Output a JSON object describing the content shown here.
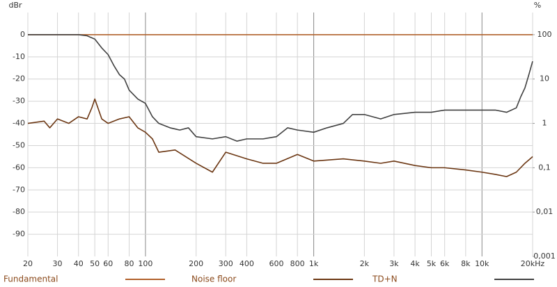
{
  "chart_data": {
    "type": "line",
    "y_unit": "dBr",
    "y2_unit": "%",
    "x_log": true,
    "y2_log": true,
    "grid": true,
    "legend": "bottom",
    "xlim": [
      20,
      20000
    ],
    "ylim": [
      -100,
      10
    ],
    "y2lim": [
      0.001,
      316.23
    ],
    "xticks": [
      20,
      30,
      40,
      50,
      60,
      80,
      100,
      200,
      300,
      400,
      600,
      800,
      {
        "value": 1000,
        "label": "1k"
      },
      {
        "value": 2000,
        "label": "2k"
      },
      {
        "value": 3000,
        "label": "3k"
      },
      {
        "value": 4000,
        "label": "4k"
      },
      {
        "value": 5000,
        "label": "5k"
      },
      {
        "value": 6000,
        "label": "6k"
      },
      {
        "value": 8000,
        "label": "8k"
      },
      {
        "value": 10000,
        "label": "10k"
      },
      {
        "value": 20000,
        "label": "20kHz"
      }
    ],
    "yticks": [
      0,
      -10,
      -20,
      -30,
      -40,
      -50,
      -60,
      -70,
      -80,
      -90
    ],
    "y2ticks": [
      100,
      10,
      1,
      {
        "value": 0.1,
        "label": "0,1"
      },
      {
        "value": 0.01,
        "label": "0,01"
      },
      {
        "value": 0.001,
        "label": "0,001"
      }
    ],
    "series": [
      {
        "name": "Fundamental",
        "color": "#b0602a",
        "x": [
          20,
          20000
        ],
        "values": [
          0,
          0
        ]
      },
      {
        "name": "Noise floor",
        "color": "#6b3612",
        "x": [
          20,
          25,
          27,
          30,
          35,
          40,
          45,
          48,
          50,
          55,
          60,
          70,
          80,
          90,
          100,
          110,
          120,
          150,
          200,
          250,
          300,
          400,
          500,
          600,
          800,
          1000,
          1500,
          2000,
          2500,
          3000,
          4000,
          5000,
          6000,
          8000,
          10000,
          12000,
          14000,
          16000,
          18000,
          20000
        ],
        "values": [
          -40,
          -39,
          -42,
          -38,
          -40,
          -37,
          -38,
          -33,
          -29,
          -38,
          -40,
          -38,
          -37,
          -42,
          -44,
          -47,
          -53,
          -52,
          -58,
          -62,
          -53,
          -56,
          -58,
          -58,
          -54,
          -57,
          -56,
          -57,
          -58,
          -57,
          -59,
          -60,
          -60,
          -61,
          -62,
          -63,
          -64,
          -62,
          -58,
          -55
        ]
      },
      {
        "name": "TD+N",
        "color": "#404040",
        "x": [
          20,
          30,
          40,
          45,
          50,
          55,
          60,
          65,
          70,
          75,
          80,
          90,
          100,
          110,
          120,
          140,
          160,
          180,
          200,
          250,
          300,
          350,
          400,
          500,
          600,
          700,
          800,
          1000,
          1200,
          1500,
          1700,
          2000,
          2500,
          3000,
          4000,
          5000,
          6000,
          8000,
          10000,
          12000,
          14000,
          16000,
          17000,
          18000,
          19000,
          20000
        ],
        "values": [
          0,
          0,
          0,
          -0.5,
          -2,
          -6,
          -9,
          -14,
          -18,
          -20,
          -25,
          -29,
          -31,
          -37,
          -40,
          -42,
          -43,
          -42,
          -46,
          -47,
          -46,
          -48,
          -47,
          -47,
          -46,
          -42,
          -43,
          -44,
          -42,
          -40,
          -36,
          -36,
          -38,
          -36,
          -35,
          -35,
          -34,
          -34,
          -34,
          -34,
          -35,
          -33,
          -28,
          -24,
          -18,
          -12
        ]
      }
    ]
  }
}
